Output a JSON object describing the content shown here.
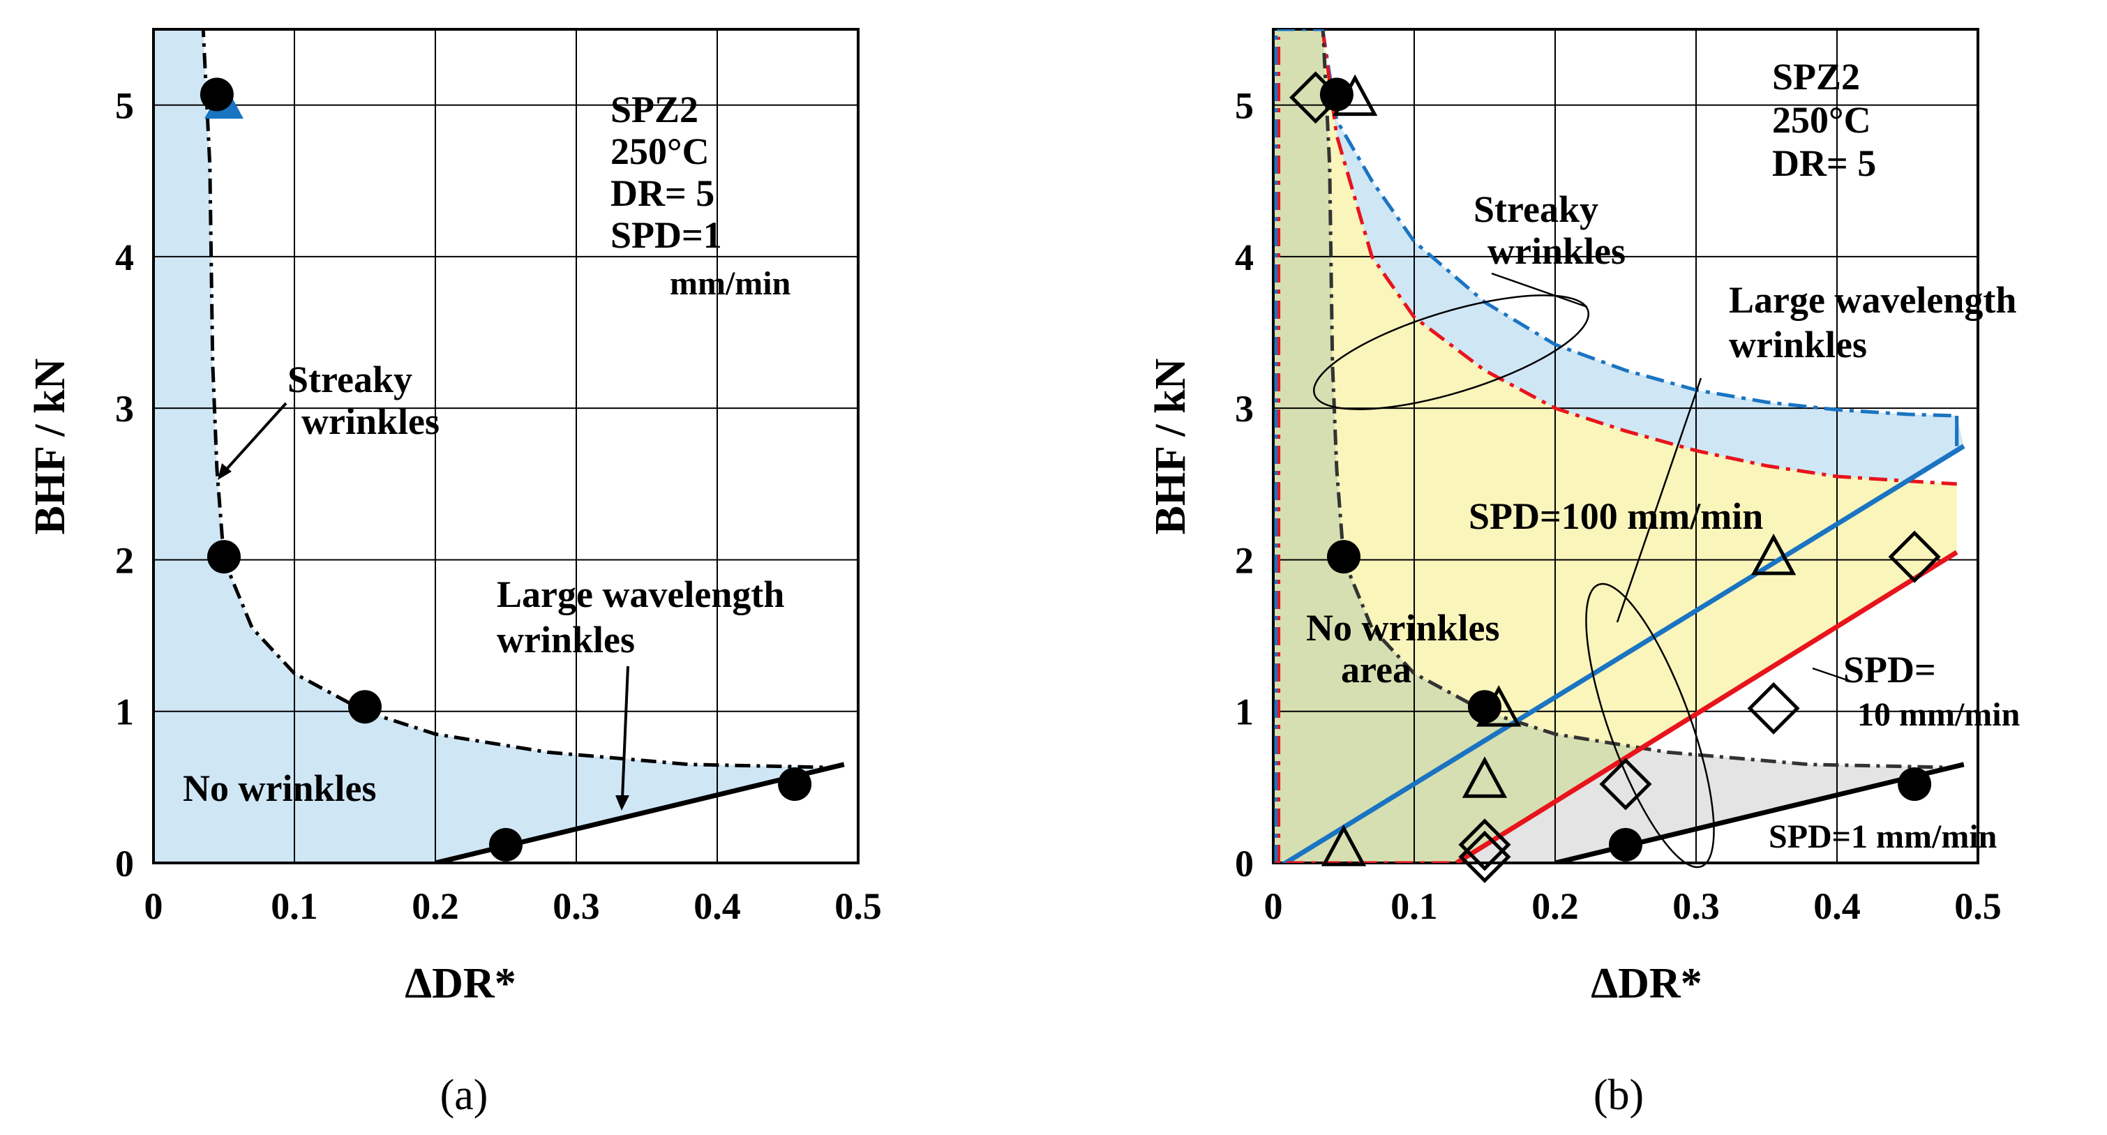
{
  "chart_data": [
    {
      "panel": "(a)",
      "type": "scatter",
      "xlabel": "ΔDR*",
      "ylabel": "BHF / kN",
      "xlim": [
        0,
        0.5
      ],
      "ylim": [
        0,
        5.5
      ],
      "x_ticks": [
        "0",
        "0.1",
        "0.2",
        "0.3",
        "0.4",
        "0.5"
      ],
      "y_ticks": [
        "0",
        "1",
        "2",
        "3",
        "4",
        "5"
      ],
      "grid": true,
      "info": [
        "SPZ2",
        "250°C",
        "DR= 5",
        "SPD=1",
        "mm/min"
      ],
      "regions": {
        "no_wrinkles": "No wrinkles",
        "streaky": [
          "Streaky",
          "wrinkles"
        ],
        "large_wavelength": [
          "Large wavelength",
          "wrinkles"
        ]
      },
      "series": [
        {
          "name": "SPD=1 mm/min",
          "marker": "filled-circle",
          "points": [
            [
              0.045,
              5.07
            ],
            [
              0.05,
              2.02
            ],
            [
              0.15,
              1.03
            ],
            [
              0.25,
              0.12
            ],
            [
              0.455,
              0.52
            ]
          ]
        },
        {
          "name": "triangle (hidden)",
          "marker": "filled-triangle",
          "points": [
            [
              0.05,
              5.02
            ]
          ]
        }
      ],
      "boundaries": {
        "streaky_boundary": [
          [
            0.035,
            5.55
          ],
          [
            0.04,
            4.6
          ],
          [
            0.042,
            3.3
          ],
          [
            0.045,
            2.6
          ],
          [
            0.05,
            2.0
          ],
          [
            0.07,
            1.55
          ],
          [
            0.1,
            1.25
          ],
          [
            0.15,
            1.0
          ],
          [
            0.2,
            0.85
          ],
          [
            0.28,
            0.73
          ],
          [
            0.38,
            0.65
          ],
          [
            0.48,
            0.63
          ]
        ],
        "large_wavelength_boundary": [
          [
            0.2,
            0.0
          ],
          [
            0.49,
            0.65
          ]
        ]
      }
    },
    {
      "panel": "(b)",
      "type": "scatter",
      "xlabel": "ΔDR*",
      "ylabel": "BHF / kN",
      "xlim": [
        0,
        0.5
      ],
      "ylim": [
        0,
        5.5
      ],
      "x_ticks": [
        "0",
        "0.1",
        "0.2",
        "0.3",
        "0.4",
        "0.5"
      ],
      "y_ticks": [
        "0",
        "1",
        "2",
        "3",
        "4",
        "5"
      ],
      "grid": true,
      "info": [
        "SPZ2",
        "250°C",
        "DR= 5"
      ],
      "regions": {
        "no_wrinkles": [
          "No wrinkles",
          "area"
        ],
        "streaky": [
          "Streaky",
          "wrinkles"
        ],
        "large_wavelength": [
          "Large wavelength",
          "wrinkles"
        ]
      },
      "line_labels": {
        "spd100": "SPD=100 mm/min",
        "spd10": [
          "SPD=",
          "10 mm/min"
        ],
        "spd1": "SPD=1 mm/min"
      },
      "colors": {
        "spd100": "#1a74c2",
        "spd10": "#e8141c",
        "spd1": "#000000",
        "fill_blue": "#cfe6f5",
        "fill_yellow": "#f9f5bb",
        "fill_gray": "#e4e4e4",
        "fill_green": "#d6dfb1"
      },
      "series": [
        {
          "name": "SPD=1 mm/min",
          "marker": "filled-circle",
          "points": [
            [
              0.045,
              5.07
            ],
            [
              0.05,
              2.02
            ],
            [
              0.15,
              1.03
            ],
            [
              0.25,
              0.12
            ],
            [
              0.455,
              0.52
            ]
          ]
        },
        {
          "name": "SPD=10 mm/min",
          "marker": "open-diamond",
          "points": [
            [
              0.03,
              5.05
            ],
            [
              0.15,
              0.12
            ],
            [
              0.15,
              0.04
            ],
            [
              0.25,
              0.52
            ],
            [
              0.355,
              1.02
            ],
            [
              0.455,
              2.02
            ]
          ]
        },
        {
          "name": "SPD=100 mm/min",
          "marker": "open-triangle",
          "points": [
            [
              0.058,
              5.05
            ],
            [
              0.05,
              0.1
            ],
            [
              0.16,
              1.02
            ],
            [
              0.15,
              0.55
            ],
            [
              0.355,
              2.02
            ]
          ]
        }
      ],
      "boundaries": {
        "spd1_streaky": [
          [
            0.035,
            5.55
          ],
          [
            0.04,
            4.6
          ],
          [
            0.042,
            3.3
          ],
          [
            0.045,
            2.6
          ],
          [
            0.05,
            2.0
          ],
          [
            0.07,
            1.55
          ],
          [
            0.1,
            1.25
          ],
          [
            0.15,
            1.0
          ],
          [
            0.2,
            0.85
          ],
          [
            0.28,
            0.73
          ],
          [
            0.38,
            0.65
          ],
          [
            0.48,
            0.63
          ]
        ],
        "spd1_large": [
          [
            0.2,
            0.0
          ],
          [
            0.49,
            0.65
          ]
        ],
        "spd10_streaky": [
          [
            0.035,
            5.5
          ],
          [
            0.045,
            4.8
          ],
          [
            0.07,
            4.0
          ],
          [
            0.1,
            3.6
          ],
          [
            0.15,
            3.25
          ],
          [
            0.2,
            3.0
          ],
          [
            0.25,
            2.85
          ],
          [
            0.3,
            2.72
          ],
          [
            0.35,
            2.62
          ],
          [
            0.4,
            2.55
          ],
          [
            0.45,
            2.52
          ],
          [
            0.485,
            2.5
          ]
        ],
        "spd10_large": [
          [
            0.13,
            0.0
          ],
          [
            0.485,
            2.05
          ]
        ],
        "spd100_streaky": [
          [
            0.035,
            5.5
          ],
          [
            0.045,
            4.9
          ],
          [
            0.07,
            4.5
          ],
          [
            0.1,
            4.1
          ],
          [
            0.15,
            3.7
          ],
          [
            0.2,
            3.42
          ],
          [
            0.25,
            3.25
          ],
          [
            0.3,
            3.12
          ],
          [
            0.35,
            3.04
          ],
          [
            0.4,
            2.99
          ],
          [
            0.45,
            2.96
          ],
          [
            0.485,
            2.95
          ]
        ],
        "spd100_large": [
          [
            0.0,
            -0.05
          ],
          [
            0.49,
            2.75
          ]
        ]
      }
    }
  ],
  "labels": {
    "panel_a": "(a)",
    "panel_b": "(b)"
  }
}
